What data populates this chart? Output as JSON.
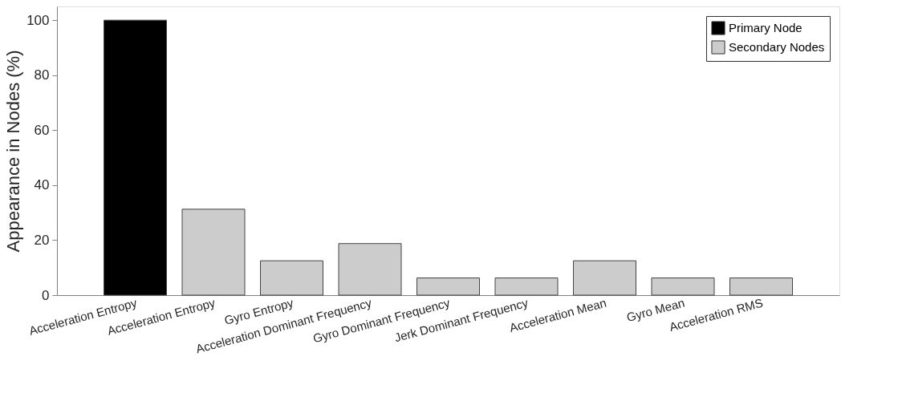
{
  "chart_data": {
    "type": "bar",
    "ylabel": "Appearance in Nodes (%)",
    "categories": [
      "Acceleration Entropy",
      "Acceleration Entropy",
      "Gyro Entropy",
      "Acceleration Dominant Frequency",
      "Gyro Dominant Frequency",
      "Jerk Dominant Frequency",
      "Acceleration Mean",
      "Gyro Mean",
      "Acceleration RMS"
    ],
    "series": [
      {
        "name": "Primary Node",
        "color": "#000000",
        "values": [
          100,
          null,
          null,
          null,
          null,
          null,
          null,
          null,
          null
        ]
      },
      {
        "name": "Secondary Nodes",
        "color": "#cccccc",
        "values": [
          null,
          31.25,
          12.5,
          18.75,
          6.25,
          6.25,
          12.5,
          6.25,
          6.25
        ]
      }
    ],
    "ylim": [
      0,
      105
    ],
    "yticks": [
      0,
      20,
      40,
      60,
      80,
      100
    ],
    "grid": false,
    "legend": "top right"
  }
}
